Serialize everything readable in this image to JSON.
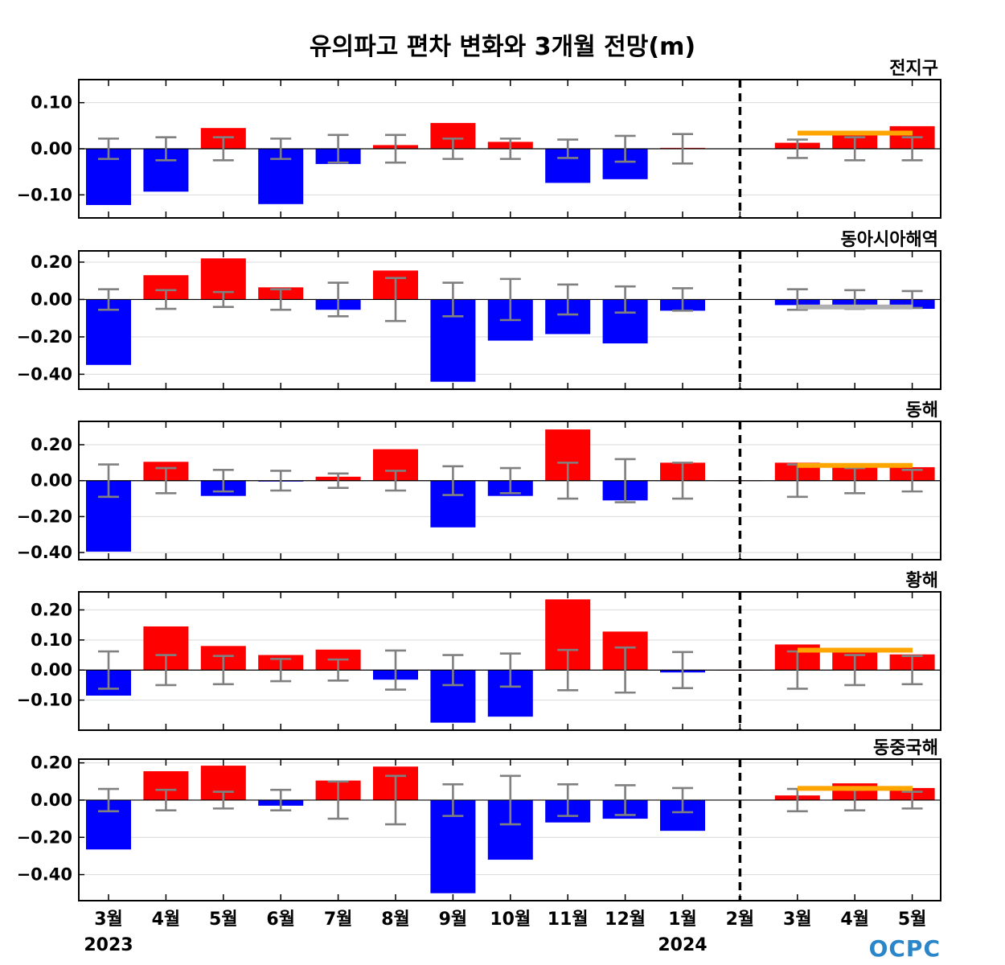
{
  "chart_data": {
    "type": "bar",
    "title": "유의파고 편차 변화와 3개월 전망(m)",
    "categories": [
      "3월",
      "4월",
      "5월",
      "6월",
      "7월",
      "8월",
      "9월",
      "10월",
      "11월",
      "12월",
      "1월",
      "2월",
      "3월",
      "4월",
      "5월"
    ],
    "year_labels": [
      {
        "index": 0,
        "label": "2023"
      },
      {
        "index": 10,
        "label": "2024"
      }
    ],
    "forecast_divider_at": 11,
    "logo": "OCPC",
    "colors": {
      "positive": "#ff0000",
      "negative": "#0000ff",
      "error_bar": "#808080",
      "outlook_up": "#ffa500",
      "outlook_down": "#b0b0b0",
      "grid": "#d9d9d9"
    },
    "panels": [
      {
        "name": "전지구",
        "ylim": [
          -0.15,
          0.15
        ],
        "yticks": [
          -0.1,
          0.0,
          0.1
        ],
        "tick_labels": [
          "−0.10",
          "0.00",
          "0.10"
        ],
        "values": [
          -0.122,
          -0.093,
          0.045,
          -0.12,
          -0.033,
          0.008,
          0.056,
          0.015,
          -0.074,
          -0.066,
          0.002,
          0.0,
          0.013,
          0.033,
          0.049
        ],
        "errors": [
          0.022,
          0.025,
          0.025,
          0.022,
          0.03,
          0.03,
          0.022,
          0.022,
          0.02,
          0.028,
          0.032,
          0,
          0.02,
          0.025,
          0.025
        ],
        "outlook": {
          "value": 0.034,
          "color": "outlook_up"
        }
      },
      {
        "name": "동아시아해역",
        "ylim": [
          -0.48,
          0.26
        ],
        "yticks": [
          -0.4,
          -0.2,
          0.0,
          0.2
        ],
        "tick_labels": [
          "−0.40",
          "−0.20",
          "0.00",
          "0.20"
        ],
        "values": [
          -0.35,
          0.13,
          0.22,
          0.065,
          -0.055,
          0.155,
          -0.44,
          -0.22,
          -0.185,
          -0.235,
          -0.06,
          0.0,
          -0.03,
          -0.03,
          -0.05
        ],
        "errors": [
          0.055,
          0.05,
          0.04,
          0.055,
          0.09,
          0.115,
          0.09,
          0.11,
          0.08,
          0.07,
          0.06,
          0,
          0.055,
          0.05,
          0.045
        ],
        "outlook": {
          "value": -0.04,
          "color": "outlook_down"
        }
      },
      {
        "name": "동해",
        "ylim": [
          -0.44,
          0.33
        ],
        "yticks": [
          -0.4,
          -0.2,
          0.0,
          0.2
        ],
        "tick_labels": [
          "−0.40",
          "−0.20",
          "0.00",
          "0.20"
        ],
        "values": [
          -0.395,
          0.105,
          -0.085,
          -0.005,
          0.022,
          0.175,
          -0.26,
          -0.085,
          0.285,
          -0.11,
          0.1,
          0.0,
          0.1,
          0.085,
          0.075
        ],
        "errors": [
          0.09,
          0.07,
          0.06,
          0.055,
          0.04,
          0.055,
          0.08,
          0.07,
          0.1,
          0.12,
          0.1,
          0,
          0.09,
          0.07,
          0.06
        ],
        "outlook": {
          "value": 0.085,
          "color": "outlook_up"
        }
      },
      {
        "name": "황해",
        "ylim": [
          -0.2,
          0.26
        ],
        "yticks": [
          -0.1,
          0.0,
          0.1,
          0.2
        ],
        "tick_labels": [
          "−0.10",
          "0.00",
          "0.10",
          "0.20"
        ],
        "values": [
          -0.085,
          0.145,
          0.08,
          0.05,
          0.068,
          -0.032,
          -0.175,
          -0.155,
          0.235,
          0.128,
          -0.008,
          0.0,
          0.085,
          0.068,
          0.052
        ],
        "errors": [
          0.062,
          0.05,
          0.047,
          0.037,
          0.035,
          0.065,
          0.05,
          0.055,
          0.067,
          0.075,
          0.06,
          0,
          0.062,
          0.05,
          0.047
        ],
        "outlook": {
          "value": 0.066,
          "color": "outlook_up"
        }
      },
      {
        "name": "동중국해",
        "ylim": [
          -0.54,
          0.22
        ],
        "yticks": [
          -0.4,
          -0.2,
          0.0,
          0.2
        ],
        "tick_labels": [
          "−0.40",
          "−0.20",
          "0.00",
          "0.20"
        ],
        "values": [
          -0.265,
          0.155,
          0.185,
          -0.03,
          0.105,
          0.18,
          -0.5,
          -0.32,
          -0.12,
          -0.1,
          -0.165,
          0.0,
          0.025,
          0.09,
          0.065
        ],
        "errors": [
          0.06,
          0.055,
          0.045,
          0.055,
          0.1,
          0.13,
          0.085,
          0.13,
          0.085,
          0.08,
          0.065,
          0,
          0.06,
          0.055,
          0.045
        ],
        "outlook": {
          "value": 0.063,
          "color": "outlook_up"
        }
      }
    ]
  }
}
